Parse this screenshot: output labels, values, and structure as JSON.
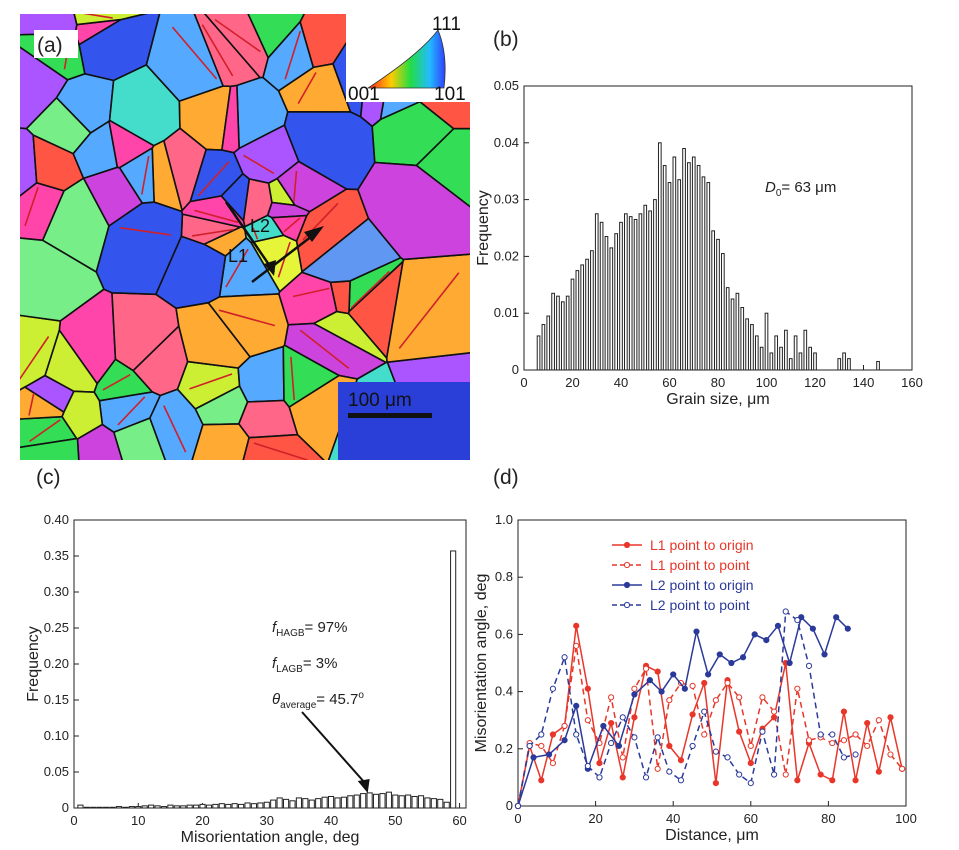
{
  "panels": {
    "a": "(a)",
    "b": "(b)",
    "c": "(c)",
    "d": "(d)"
  },
  "ebsd": {
    "legend_top": "111",
    "legend_left": "001",
    "legend_right": "101",
    "line_label_1": "L1",
    "line_label_2": "L2",
    "scale_bar": "100 μm",
    "colors": [
      "#ff5544",
      "#33dd55",
      "#3355ee",
      "#cc44dd",
      "#ff44aa",
      "#55aaff",
      "#ccee33",
      "#ffaa33",
      "#44ddcc",
      "#aa55ff",
      "#ff6688",
      "#77ee88"
    ]
  },
  "chart_data": [
    {
      "type": "bar",
      "panel": "b",
      "xlabel": "Grain size, μm",
      "ylabel": "Frequency",
      "xlim": [
        0,
        160
      ],
      "ylim": [
        0,
        0.05
      ],
      "xticks": [
        0,
        20,
        40,
        60,
        80,
        100,
        120,
        140,
        160
      ],
      "yticks": [
        0,
        0.01,
        0.02,
        0.03,
        0.04,
        0.05
      ],
      "annotation": {
        "symbol": "D",
        "sub": "0",
        "text": "= 63 μm"
      },
      "x": [
        6,
        8,
        10,
        12,
        14,
        16,
        18,
        20,
        22,
        24,
        26,
        28,
        30,
        32,
        34,
        36,
        38,
        40,
        42,
        44,
        46,
        48,
        50,
        52,
        54,
        56,
        58,
        60,
        62,
        64,
        66,
        68,
        70,
        72,
        74,
        76,
        78,
        80,
        82,
        84,
        86,
        88,
        90,
        92,
        94,
        96,
        98,
        100,
        102,
        104,
        106,
        108,
        110,
        112,
        114,
        116,
        118,
        120,
        130,
        132,
        134,
        146
      ],
      "values": [
        0.006,
        0.008,
        0.0095,
        0.0135,
        0.013,
        0.012,
        0.013,
        0.016,
        0.0175,
        0.0185,
        0.0195,
        0.021,
        0.0275,
        0.026,
        0.0235,
        0.0215,
        0.024,
        0.026,
        0.0275,
        0.027,
        0.0265,
        0.0275,
        0.029,
        0.028,
        0.03,
        0.04,
        0.036,
        0.033,
        0.0375,
        0.0335,
        0.039,
        0.0365,
        0.0375,
        0.036,
        0.034,
        0.033,
        0.0245,
        0.023,
        0.0205,
        0.0145,
        0.0125,
        0.0135,
        0.011,
        0.009,
        0.008,
        0.006,
        0.004,
        0.01,
        0.003,
        0.006,
        0.004,
        0.007,
        0.002,
        0.006,
        0.003,
        0.007,
        0.004,
        0.003,
        0.002,
        0.003,
        0.002,
        0.0015
      ]
    },
    {
      "type": "bar",
      "panel": "c",
      "xlabel": "Misorientation angle, deg",
      "ylabel": "Frequency",
      "xlim": [
        0,
        61
      ],
      "ylim": [
        0,
        0.4
      ],
      "xticks": [
        0,
        10,
        20,
        30,
        40,
        50,
        60
      ],
      "yticks": [
        "0",
        "0.05",
        "0.10",
        "0.15",
        "0.20",
        "0.25",
        "0.30",
        "0.35",
        "0.40"
      ],
      "x": [
        1,
        2,
        3,
        4,
        5,
        6,
        7,
        8,
        9,
        10,
        11,
        12,
        13,
        14,
        15,
        16,
        17,
        18,
        19,
        20,
        21,
        22,
        23,
        24,
        25,
        26,
        27,
        28,
        29,
        30,
        31,
        32,
        33,
        34,
        35,
        36,
        37,
        38,
        39,
        40,
        41,
        42,
        43,
        44,
        45,
        46,
        47,
        48,
        49,
        50,
        51,
        52,
        53,
        54,
        55,
        56,
        57,
        58,
        59
      ],
      "values": [
        0.004,
        0.001,
        0.001,
        0.001,
        0.001,
        0.001,
        0.002,
        0.001,
        0.002,
        0.002,
        0.003,
        0.004,
        0.003,
        0.002,
        0.004,
        0.003,
        0.003,
        0.004,
        0.004,
        0.005,
        0.004,
        0.005,
        0.006,
        0.005,
        0.006,
        0.005,
        0.007,
        0.006,
        0.007,
        0.008,
        0.011,
        0.014,
        0.012,
        0.01,
        0.014,
        0.013,
        0.011,
        0.013,
        0.015,
        0.016,
        0.014,
        0.015,
        0.017,
        0.018,
        0.02,
        0.021,
        0.019,
        0.02,
        0.022,
        0.018,
        0.017,
        0.018,
        0.016,
        0.017,
        0.014,
        0.013,
        0.012,
        0.008,
        0.357
      ],
      "annotations": [
        {
          "symbol": "f",
          "sub": "HAGB",
          "text": "= 97%"
        },
        {
          "symbol": "f",
          "sub": "LAGB",
          "text": "= 3%"
        },
        {
          "symbol": "θ",
          "sub": "average",
          "text": "= 45.7",
          "sup": "o"
        }
      ],
      "arrow_to_x": 45.7
    },
    {
      "type": "line",
      "panel": "d",
      "xlabel": "Distance, μm",
      "ylabel": "Misorientation angle, deg",
      "xlim": [
        0,
        100
      ],
      "ylim": [
        0,
        1.0
      ],
      "xticks": [
        0,
        20,
        40,
        60,
        80,
        100
      ],
      "yticks": [
        "0",
        "0.2",
        "0.4",
        "0.6",
        "0.8",
        "1.0"
      ],
      "legend": "top-center",
      "series": [
        {
          "name": "L1 point to origin",
          "color": "#e8372a",
          "dash": false,
          "marker": "filled",
          "x": [
            0,
            3,
            6,
            9,
            12,
            15,
            18,
            21,
            24,
            27,
            30,
            33,
            36,
            39,
            42,
            45,
            48,
            51,
            54,
            57,
            60,
            63,
            66,
            69,
            72,
            75,
            78,
            81,
            84,
            87,
            90,
            93,
            96,
            99
          ],
          "y": [
            0,
            0.21,
            0.09,
            0.25,
            0.28,
            0.63,
            0.41,
            0.15,
            0.29,
            0.1,
            0.31,
            0.49,
            0.47,
            0.21,
            0.16,
            0.32,
            0.43,
            0.08,
            0.44,
            0.26,
            0.15,
            0.27,
            0.31,
            0.5,
            0.09,
            0.22,
            0.11,
            0.09,
            0.33,
            0.09,
            0.29,
            0.12,
            0.31,
            0.13
          ]
        },
        {
          "name": "L1 point to point",
          "color": "#e8372a",
          "dash": true,
          "marker": "open",
          "x": [
            0,
            3,
            6,
            9,
            12,
            15,
            18,
            21,
            24,
            27,
            30,
            33,
            36,
            39,
            42,
            45,
            48,
            51,
            54,
            57,
            60,
            63,
            66,
            69,
            72,
            75,
            78,
            81,
            84,
            87,
            90,
            93,
            96,
            99
          ],
          "y": [
            0,
            0.22,
            0.21,
            0.15,
            0.28,
            0.56,
            0.3,
            0.22,
            0.38,
            0.17,
            0.41,
            0.48,
            0.13,
            0.37,
            0.43,
            0.42,
            0.25,
            0.37,
            0.43,
            0.38,
            0.21,
            0.38,
            0.33,
            0.11,
            0.41,
            0.23,
            0.24,
            0.22,
            0.23,
            0.25,
            0.21,
            0.3,
            0.18,
            0.13
          ]
        },
        {
          "name": "L2 point to origin",
          "color": "#2b3a9a",
          "dash": false,
          "marker": "filled",
          "x": [
            0,
            4,
            8,
            12,
            15,
            18,
            22,
            26,
            30,
            34,
            37,
            40,
            43,
            46,
            49,
            52,
            55,
            58,
            61,
            64,
            67,
            70,
            73,
            76,
            79,
            82,
            85
          ],
          "y": [
            0,
            0.17,
            0.18,
            0.23,
            0.35,
            0.13,
            0.28,
            0.21,
            0.39,
            0.44,
            0.4,
            0.46,
            0.41,
            0.61,
            0.46,
            0.53,
            0.5,
            0.52,
            0.6,
            0.58,
            0.63,
            0.5,
            0.66,
            0.62,
            0.53,
            0.66,
            0.62
          ]
        },
        {
          "name": "L2 point to point",
          "color": "#2b3a9a",
          "dash": true,
          "marker": "open",
          "x": [
            0,
            3,
            6,
            9,
            12,
            15,
            18,
            21,
            24,
            27,
            30,
            33,
            36,
            39,
            42,
            45,
            48,
            51,
            54,
            57,
            60,
            63,
            66,
            69,
            72,
            75,
            78,
            81,
            84,
            87
          ],
          "y": [
            0,
            0.21,
            0.25,
            0.41,
            0.52,
            0.25,
            0.14,
            0.1,
            0.22,
            0.31,
            0.24,
            0.1,
            0.24,
            0.12,
            0.09,
            0.21,
            0.33,
            0.19,
            0.17,
            0.11,
            0.08,
            0.26,
            0.11,
            0.68,
            0.65,
            0.49,
            0.25,
            0.25,
            0.17,
            0.18
          ]
        }
      ]
    }
  ]
}
